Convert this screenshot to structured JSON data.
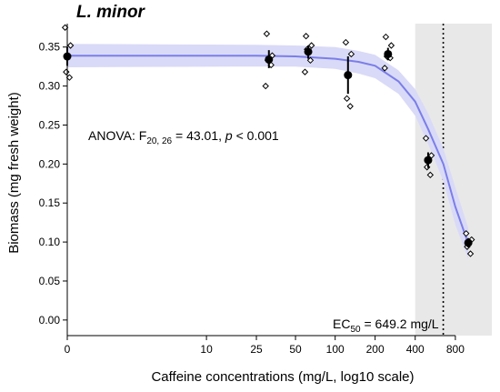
{
  "chart_data": {
    "type": "scatter",
    "title": "L. minor",
    "xlabel": "Caffeine concentrations (mg/L, log10 scale)",
    "ylabel": "Biomass (mg fresh weight)",
    "x_scale": "log10(x+1)",
    "xlim": [
      0,
      1500
    ],
    "ylim": [
      -0.02,
      0.38
    ],
    "x_ticks": [
      0,
      10,
      25,
      50,
      100,
      200,
      400,
      800
    ],
    "x_tick_labels": [
      "0",
      "10",
      "25",
      "50",
      "100",
      "200",
      "400",
      "800"
    ],
    "y_ticks": [
      0.0,
      0.05,
      0.1,
      0.15,
      0.2,
      0.25,
      0.3,
      0.35
    ],
    "y_tick_labels": [
      "0.00",
      "0.05",
      "0.10",
      "0.15",
      "0.20",
      "0.25",
      "0.30",
      "0.35"
    ],
    "grid": false,
    "annotations": {
      "anova": {
        "prefix": "ANOVA: F",
        "subscript": "20, 26",
        "middle": " = 43.01, ",
        "p": "p",
        "suffix": " < 0.001"
      },
      "ec50": {
        "prefix": "EC",
        "subscript": "50",
        "suffix": " = 649.2 mg/L",
        "value": 649.2
      }
    },
    "ec50_band": [
      400,
      1500
    ],
    "fit_curve": [
      {
        "x": 0,
        "y": 0.339
      },
      {
        "x": 25,
        "y": 0.339
      },
      {
        "x": 50,
        "y": 0.338
      },
      {
        "x": 100,
        "y": 0.335
      },
      {
        "x": 150,
        "y": 0.331
      },
      {
        "x": 200,
        "y": 0.326
      },
      {
        "x": 300,
        "y": 0.306
      },
      {
        "x": 400,
        "y": 0.28
      },
      {
        "x": 500,
        "y": 0.245
      },
      {
        "x": 650,
        "y": 0.2
      },
      {
        "x": 800,
        "y": 0.145
      },
      {
        "x": 1000,
        "y": 0.098
      }
    ],
    "ci_upper": [
      {
        "x": 0,
        "y": 0.354
      },
      {
        "x": 25,
        "y": 0.353
      },
      {
        "x": 50,
        "y": 0.352
      },
      {
        "x": 100,
        "y": 0.35
      },
      {
        "x": 150,
        "y": 0.345
      },
      {
        "x": 200,
        "y": 0.34
      },
      {
        "x": 300,
        "y": 0.32
      },
      {
        "x": 400,
        "y": 0.296
      },
      {
        "x": 500,
        "y": 0.265
      },
      {
        "x": 650,
        "y": 0.22
      },
      {
        "x": 800,
        "y": 0.17
      },
      {
        "x": 1000,
        "y": 0.118
      }
    ],
    "ci_lower": [
      {
        "x": 0,
        "y": 0.324
      },
      {
        "x": 25,
        "y": 0.325
      },
      {
        "x": 50,
        "y": 0.325
      },
      {
        "x": 100,
        "y": 0.322
      },
      {
        "x": 150,
        "y": 0.316
      },
      {
        "x": 200,
        "y": 0.31
      },
      {
        "x": 300,
        "y": 0.29
      },
      {
        "x": 400,
        "y": 0.262
      },
      {
        "x": 500,
        "y": 0.226
      },
      {
        "x": 650,
        "y": 0.178
      },
      {
        "x": 800,
        "y": 0.122
      },
      {
        "x": 1000,
        "y": 0.078
      }
    ],
    "means": [
      {
        "x": 0,
        "y": 0.338,
        "low": 0.326,
        "high": 0.35
      },
      {
        "x": 31.25,
        "y": 0.334,
        "low": 0.323,
        "high": 0.346
      },
      {
        "x": 62.5,
        "y": 0.344,
        "low": 0.335,
        "high": 0.352
      },
      {
        "x": 125,
        "y": 0.314,
        "low": 0.29,
        "high": 0.338
      },
      {
        "x": 250,
        "y": 0.341,
        "low": 0.333,
        "high": 0.349
      },
      {
        "x": 500,
        "y": 0.205,
        "low": 0.195,
        "high": 0.215
      },
      {
        "x": 1000,
        "y": 0.099,
        "low": 0.093,
        "high": 0.105
      }
    ],
    "raw_points": [
      {
        "x": 0,
        "y": 0.375
      },
      {
        "x": 0,
        "y": 0.352
      },
      {
        "x": 0,
        "y": 0.318
      },
      {
        "x": 0,
        "y": 0.311
      },
      {
        "x": 31.25,
        "y": 0.367
      },
      {
        "x": 31.25,
        "y": 0.339
      },
      {
        "x": 31.25,
        "y": 0.333
      },
      {
        "x": 31.25,
        "y": 0.327
      },
      {
        "x": 31.25,
        "y": 0.3
      },
      {
        "x": 62.5,
        "y": 0.364
      },
      {
        "x": 62.5,
        "y": 0.352
      },
      {
        "x": 62.5,
        "y": 0.347
      },
      {
        "x": 62.5,
        "y": 0.333
      },
      {
        "x": 62.5,
        "y": 0.318
      },
      {
        "x": 125,
        "y": 0.356
      },
      {
        "x": 125,
        "y": 0.341
      },
      {
        "x": 125,
        "y": 0.284
      },
      {
        "x": 125,
        "y": 0.274
      },
      {
        "x": 250,
        "y": 0.363
      },
      {
        "x": 250,
        "y": 0.352
      },
      {
        "x": 250,
        "y": 0.338
      },
      {
        "x": 250,
        "y": 0.336
      },
      {
        "x": 250,
        "y": 0.323
      },
      {
        "x": 500,
        "y": 0.233
      },
      {
        "x": 500,
        "y": 0.211
      },
      {
        "x": 500,
        "y": 0.196
      },
      {
        "x": 500,
        "y": 0.186
      },
      {
        "x": 1000,
        "y": 0.111
      },
      {
        "x": 1000,
        "y": 0.103
      },
      {
        "x": 1000,
        "y": 0.094
      },
      {
        "x": 1000,
        "y": 0.085
      }
    ],
    "colors": {
      "curve": "#7b7ee8",
      "ci_band": "#d9daf7",
      "ec50_band": "#e8e8e8",
      "points": "#000000"
    }
  }
}
